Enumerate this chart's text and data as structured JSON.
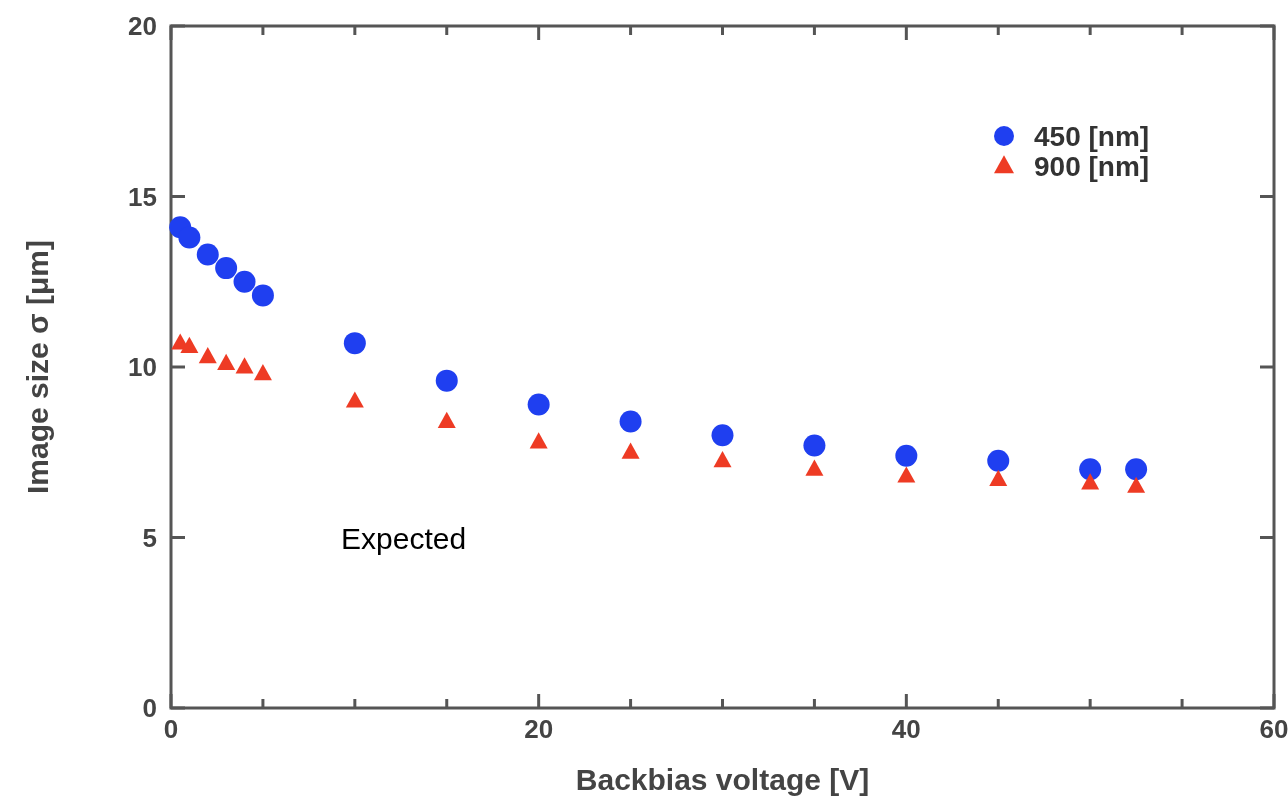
{
  "chart_data": {
    "type": "scatter",
    "xlabel": "Backbias voltage [V]",
    "ylabel": "Image size σ [μm]",
    "x": [
      0.5,
      1,
      2,
      3,
      4,
      5,
      10,
      15,
      20,
      25,
      30,
      35,
      40,
      45,
      50,
      52.5
    ],
    "series": [
      {
        "name": "450 [nm]",
        "color": "#1f3ff0",
        "marker": "circle",
        "values": [
          14.1,
          13.8,
          13.3,
          12.9,
          12.5,
          12.1,
          10.7,
          9.6,
          8.9,
          8.4,
          8.0,
          7.7,
          7.4,
          7.25,
          7.0,
          7.0
        ]
      },
      {
        "name": "900 [nm]",
        "color": "#ee3b24",
        "marker": "triangle",
        "values": [
          10.7,
          10.6,
          10.3,
          10.1,
          10.0,
          9.8,
          9.0,
          8.4,
          7.8,
          7.5,
          7.25,
          7.0,
          6.8,
          6.7,
          6.6,
          6.5
        ]
      }
    ],
    "xlim": [
      0,
      60
    ],
    "ylim": [
      0,
      20
    ],
    "xticks": [
      0,
      {
        "value": 5,
        "label": null
      },
      {
        "value": 10,
        "label": null
      },
      {
        "value": 15,
        "label": null
      },
      20,
      {
        "value": 25,
        "label": null
      },
      {
        "value": 30,
        "label": null
      },
      {
        "value": 35,
        "label": null
      },
      40,
      {
        "value": 45,
        "label": null
      },
      {
        "value": 50,
        "label": null
      },
      {
        "value": 55,
        "label": null
      },
      60
    ],
    "yticks": [
      0,
      5,
      10,
      15,
      20
    ],
    "legend": "top right",
    "grid": false,
    "annotations": [
      "Expected"
    ]
  }
}
